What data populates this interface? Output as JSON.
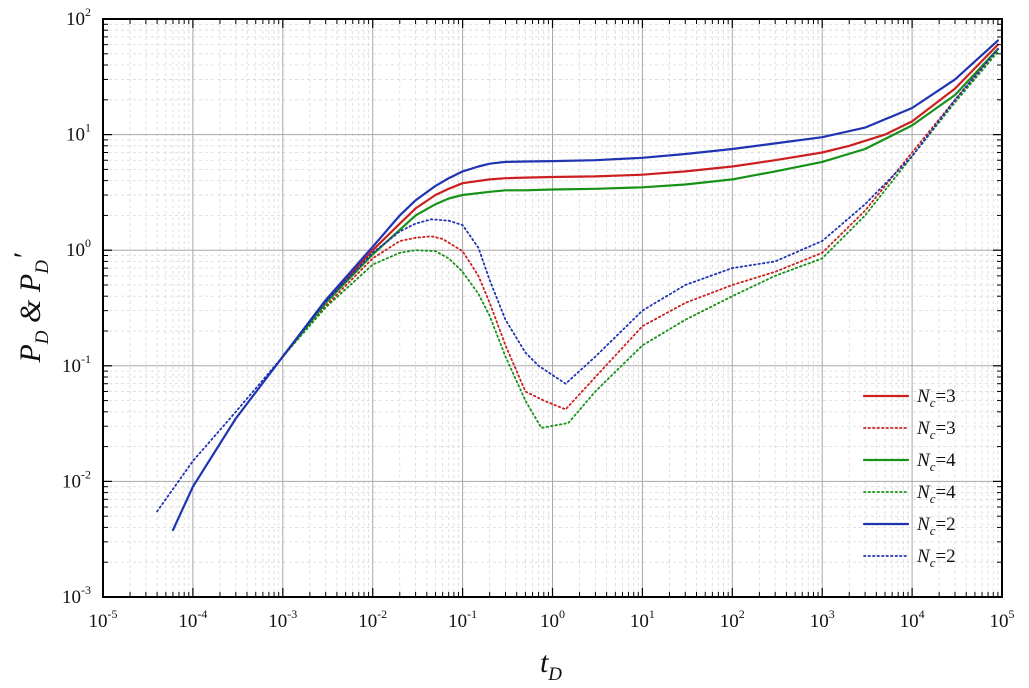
{
  "chart_data": {
    "type": "line",
    "title": "",
    "xlabel": {
      "base": "t",
      "sub": "D"
    },
    "ylabel": {
      "base": "P",
      "sub": "D",
      "connector": " & ",
      "base2": "P",
      "sub2": "D",
      "prime": "′"
    },
    "x_scale": "log",
    "y_scale": "log",
    "xlim": [
      1e-05,
      100000
    ],
    "ylim": [
      0.001,
      100
    ],
    "x_ticks": [
      {
        "value": 1e-05,
        "base": "10",
        "exp": "-5"
      },
      {
        "value": 0.0001,
        "base": "10",
        "exp": "-4"
      },
      {
        "value": 0.001,
        "base": "10",
        "exp": "-3"
      },
      {
        "value": 0.01,
        "base": "10",
        "exp": "-2"
      },
      {
        "value": 0.1,
        "base": "10",
        "exp": "-1"
      },
      {
        "value": 1,
        "base": "10",
        "exp": "0"
      },
      {
        "value": 10,
        "base": "10",
        "exp": "1"
      },
      {
        "value": 100,
        "base": "10",
        "exp": "2"
      },
      {
        "value": 1000,
        "base": "10",
        "exp": "3"
      },
      {
        "value": 10000,
        "base": "10",
        "exp": "4"
      },
      {
        "value": 100000,
        "base": "10",
        "exp": "5"
      }
    ],
    "y_ticks": [
      {
        "value": 0.001,
        "base": "10",
        "exp": "-3"
      },
      {
        "value": 0.01,
        "base": "10",
        "exp": "-2"
      },
      {
        "value": 0.1,
        "base": "10",
        "exp": "-1"
      },
      {
        "value": 1,
        "base": "10",
        "exp": "0"
      },
      {
        "value": 10,
        "base": "10",
        "exp": "1"
      },
      {
        "value": 100,
        "base": "10",
        "exp": "2"
      }
    ],
    "grid": true,
    "legend_position": "lower-right",
    "series": [
      {
        "legend": {
          "base": "N",
          "sub": "c",
          "text": "=3"
        },
        "color": "#cc1f1f",
        "dash": "solid",
        "x": [
          0.001,
          0.003,
          0.01,
          0.02,
          0.03,
          0.05,
          0.07,
          0.1,
          0.2,
          0.3,
          0.5,
          1,
          3,
          10,
          30,
          100,
          300,
          1000,
          2000,
          5000,
          10000,
          30000,
          90000
        ],
        "y": [
          0.12,
          0.36,
          1.0,
          1.7,
          2.3,
          3.0,
          3.4,
          3.8,
          4.1,
          4.2,
          4.25,
          4.3,
          4.35,
          4.5,
          4.8,
          5.3,
          6.0,
          7.0,
          8.0,
          10.0,
          13.0,
          25.0,
          60.0
        ]
      },
      {
        "legend": {
          "base": "N",
          "sub": "c",
          "text": "=3"
        },
        "color": "#cc1f1f",
        "dash": "dotted",
        "x": [
          0.001,
          0.003,
          0.01,
          0.02,
          0.03,
          0.045,
          0.06,
          0.1,
          0.15,
          0.2,
          0.3,
          0.5,
          0.8,
          1.4,
          3,
          10,
          30,
          100,
          300,
          1000,
          3000,
          10000,
          30000,
          90000
        ],
        "y": [
          0.12,
          0.33,
          0.85,
          1.2,
          1.28,
          1.32,
          1.25,
          0.98,
          0.6,
          0.35,
          0.15,
          0.06,
          0.05,
          0.042,
          0.08,
          0.22,
          0.35,
          0.5,
          0.65,
          0.95,
          2.2,
          7.0,
          20.0,
          55.0
        ]
      },
      {
        "legend": {
          "base": "N",
          "sub": "c",
          "text": "=4"
        },
        "color": "#179117",
        "dash": "solid",
        "x": [
          0.001,
          0.003,
          0.01,
          0.02,
          0.03,
          0.05,
          0.07,
          0.1,
          0.2,
          0.3,
          0.5,
          1,
          3,
          10,
          30,
          100,
          300,
          1000,
          3000,
          10000,
          30000,
          90000
        ],
        "y": [
          0.12,
          0.35,
          0.92,
          1.5,
          2.0,
          2.5,
          2.8,
          3.0,
          3.2,
          3.3,
          3.3,
          3.35,
          3.4,
          3.5,
          3.7,
          4.1,
          4.8,
          5.8,
          7.5,
          12.0,
          22.0,
          55.0
        ]
      },
      {
        "legend": {
          "base": "N",
          "sub": "c",
          "text": "=4"
        },
        "color": "#179117",
        "dash": "dotted",
        "x": [
          0.001,
          0.003,
          0.01,
          0.02,
          0.03,
          0.05,
          0.07,
          0.1,
          0.15,
          0.2,
          0.3,
          0.5,
          0.75,
          1.5,
          3,
          10,
          30,
          100,
          300,
          1000,
          3000,
          10000,
          30000,
          90000
        ],
        "y": [
          0.12,
          0.32,
          0.75,
          0.95,
          1.0,
          0.98,
          0.85,
          0.65,
          0.42,
          0.27,
          0.12,
          0.05,
          0.029,
          0.032,
          0.06,
          0.15,
          0.25,
          0.4,
          0.6,
          0.85,
          2.0,
          6.5,
          19.0,
          52.0
        ]
      },
      {
        "legend": {
          "base": "N",
          "sub": "c",
          "text": "=2"
        },
        "color": "#1f33b3",
        "dash": "solid",
        "x": [
          6e-05,
          0.0001,
          0.0003,
          0.001,
          0.003,
          0.01,
          0.02,
          0.03,
          0.05,
          0.07,
          0.1,
          0.15,
          0.2,
          0.3,
          0.5,
          1,
          3,
          10,
          30,
          100,
          300,
          1000,
          3000,
          10000,
          30000,
          90000
        ],
        "y": [
          0.0038,
          0.009,
          0.035,
          0.12,
          0.37,
          1.07,
          2.0,
          2.7,
          3.6,
          4.2,
          4.8,
          5.3,
          5.6,
          5.8,
          5.85,
          5.9,
          6.0,
          6.3,
          6.8,
          7.5,
          8.4,
          9.5,
          11.5,
          17.0,
          30.0,
          65.0
        ]
      },
      {
        "legend": {
          "base": "N",
          "sub": "c",
          "text": "=2"
        },
        "color": "#1f33b3",
        "dash": "dotted",
        "x": [
          4e-05,
          0.0001,
          0.0003,
          0.001,
          0.003,
          0.01,
          0.02,
          0.03,
          0.045,
          0.07,
          0.1,
          0.15,
          0.2,
          0.3,
          0.5,
          0.7,
          1.4,
          3,
          10,
          30,
          100,
          300,
          1000,
          3000,
          10000,
          30000,
          90000
        ],
        "y": [
          0.0055,
          0.015,
          0.04,
          0.12,
          0.36,
          0.95,
          1.45,
          1.7,
          1.85,
          1.8,
          1.65,
          1.05,
          0.55,
          0.25,
          0.13,
          0.1,
          0.07,
          0.12,
          0.3,
          0.5,
          0.7,
          0.8,
          1.2,
          2.5,
          6.5,
          20.0,
          55.0
        ]
      }
    ]
  }
}
